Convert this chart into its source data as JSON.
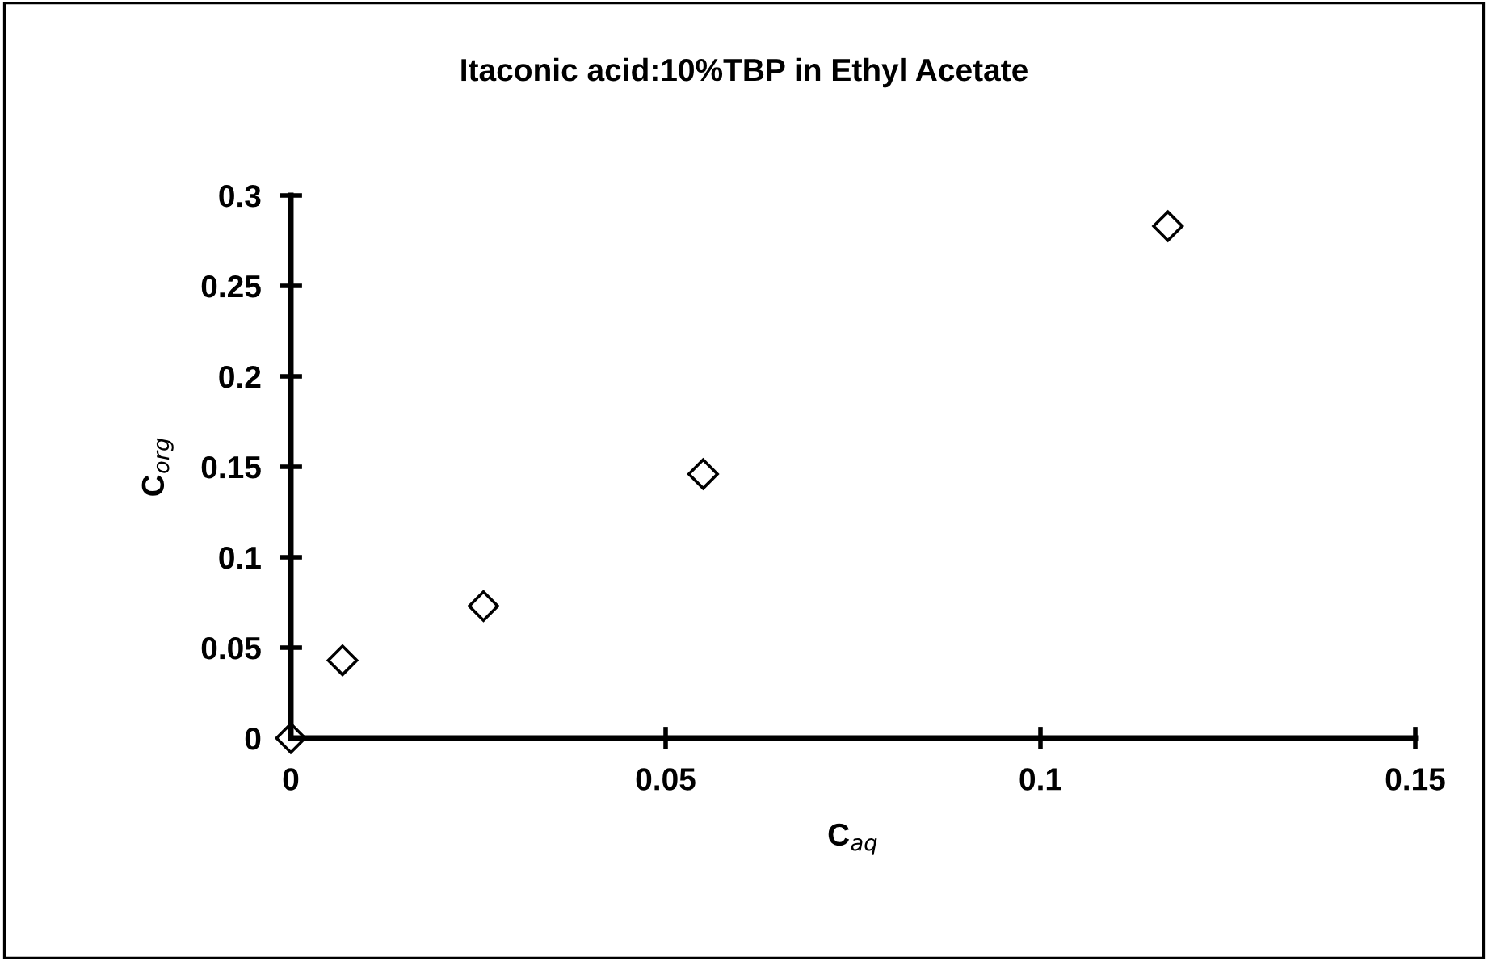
{
  "chart_data": {
    "type": "scatter",
    "title": "Itaconic acid:10%TBP in Ethyl Acetate",
    "xlabel": "C$_{aq}$",
    "ylabel": "C$_{org}$",
    "series": [
      {
        "color": "#000000",
        "x": [
          0,
          0.0069,
          0.0257,
          0.055,
          0.117
        ],
        "values": [
          0,
          0.043,
          0.073,
          0.146,
          0.283
        ]
      }
    ],
    "xlim": [
      0,
      0.15
    ],
    "xticks": [
      0,
      0.05,
      0.1,
      0.15
    ],
    "ylim": [
      0,
      0.3
    ],
    "yticks": [
      0,
      0.05,
      0.1,
      0.15,
      0.2,
      0.25,
      0.3
    ],
    "marker": "diamond",
    "grid": false,
    "legend": false
  }
}
